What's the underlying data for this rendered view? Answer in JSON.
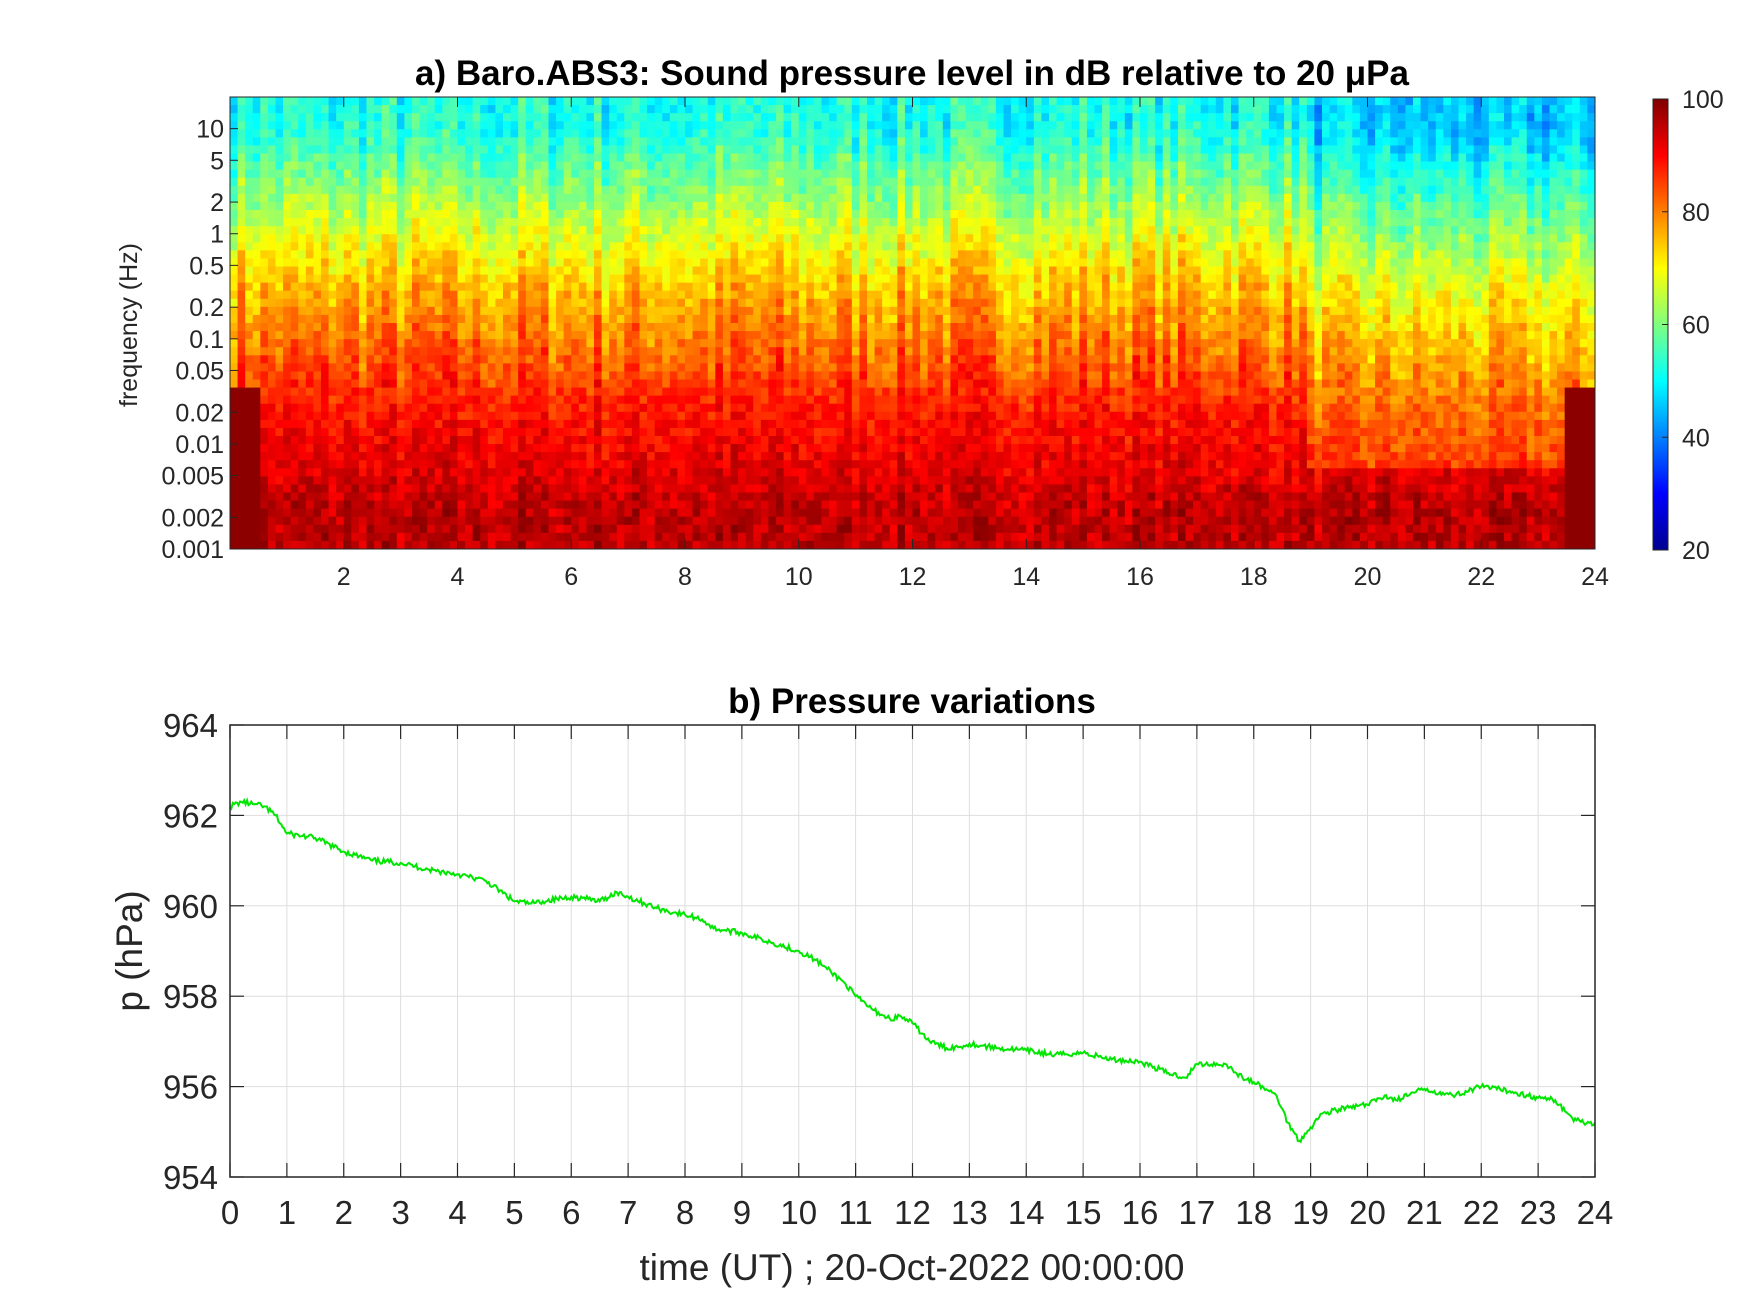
{
  "chart_data": [
    {
      "type": "heatmap",
      "title": "a) Baro.ABS3: Sound pressure level in dB relative to 20 μPa",
      "xlabel": "",
      "ylabel": "frequency (Hz)",
      "xlim": [
        0,
        24
      ],
      "x_ticks": [
        "2",
        "4",
        "6",
        "8",
        "10",
        "12",
        "14",
        "16",
        "18",
        "20",
        "22",
        "24"
      ],
      "y_scale": "log",
      "ylim": [
        0.001,
        20
      ],
      "y_ticks": [
        "0.001",
        "0.002",
        "0.005",
        "0.01",
        "0.02",
        "0.05",
        "0.1",
        "0.2",
        "0.5",
        "1",
        "2",
        "5",
        "10"
      ],
      "colorbar": {
        "colormap": "jet",
        "range": [
          20,
          100
        ],
        "ticks": [
          "20",
          "40",
          "60",
          "80",
          "100"
        ]
      },
      "bands": [
        {
          "f_low": 0.001,
          "f_high": 0.005,
          "level_db": 95
        },
        {
          "f_low": 0.005,
          "f_high": 0.1,
          "level_db": 88
        },
        {
          "f_low": 0.1,
          "f_high": 1,
          "level_db": 75
        },
        {
          "f_low": 1,
          "f_high": 5,
          "level_db": 62
        },
        {
          "f_low": 5,
          "f_high": 20,
          "level_db": 52
        }
      ]
    },
    {
      "type": "line",
      "title": "b) Pressure variations",
      "xlabel": "time (UT) ; 20-Oct-2022 00:00:00",
      "ylabel": "p (hPa)",
      "xlim": [
        0,
        24
      ],
      "ylim": [
        954,
        964
      ],
      "x_ticks": [
        "0",
        "1",
        "2",
        "3",
        "4",
        "5",
        "6",
        "7",
        "8",
        "9",
        "10",
        "11",
        "12",
        "13",
        "14",
        "15",
        "16",
        "17",
        "18",
        "19",
        "20",
        "21",
        "22",
        "23",
        "24"
      ],
      "y_ticks": [
        "954",
        "956",
        "958",
        "960",
        "962",
        "964"
      ],
      "grid": true,
      "line_color": "#00e600",
      "series": [
        {
          "x": [
            0,
            0.2,
            0.4,
            0.6,
            0.8,
            1.0,
            1.5,
            2.0,
            2.5,
            3.0,
            3.5,
            4.0,
            4.5,
            5.0,
            5.3,
            5.5,
            6.0,
            6.3,
            6.5,
            6.8,
            7.0,
            7.5,
            7.8,
            8.0,
            8.3,
            8.5,
            9.0,
            9.5,
            10.0,
            10.3,
            10.5,
            10.8,
            11.0,
            11.3,
            11.6,
            11.8,
            12.0,
            12.3,
            12.6,
            12.9,
            13.0,
            13.5,
            14.0,
            14.5,
            15.0,
            15.5,
            16.0,
            16.5,
            16.8,
            17.0,
            17.5,
            17.8,
            18.0,
            18.4,
            18.6,
            18.8,
            19.0,
            19.2,
            19.5,
            20.0,
            20.3,
            20.5,
            21.0,
            21.5,
            22.0,
            22.5,
            23.0,
            23.3,
            23.6,
            23.8,
            24.0
          ],
          "y": [
            962.2,
            962.3,
            962.25,
            962.2,
            962.0,
            961.6,
            961.5,
            961.2,
            961.0,
            960.95,
            960.8,
            960.7,
            960.55,
            960.1,
            960.05,
            960.1,
            960.2,
            960.15,
            960.1,
            960.3,
            960.2,
            959.95,
            959.85,
            959.8,
            959.7,
            959.5,
            959.4,
            959.2,
            959.0,
            958.8,
            958.6,
            958.3,
            958.0,
            957.7,
            957.5,
            957.55,
            957.4,
            957.0,
            956.85,
            956.9,
            956.95,
            956.85,
            956.8,
            956.7,
            956.75,
            956.6,
            956.55,
            956.3,
            956.2,
            956.5,
            956.5,
            956.2,
            956.1,
            955.8,
            955.2,
            954.8,
            955.1,
            955.4,
            955.5,
            955.6,
            955.8,
            955.7,
            955.95,
            955.8,
            956.0,
            955.9,
            955.75,
            955.7,
            955.3,
            955.2,
            955.2
          ]
        }
      ]
    }
  ]
}
